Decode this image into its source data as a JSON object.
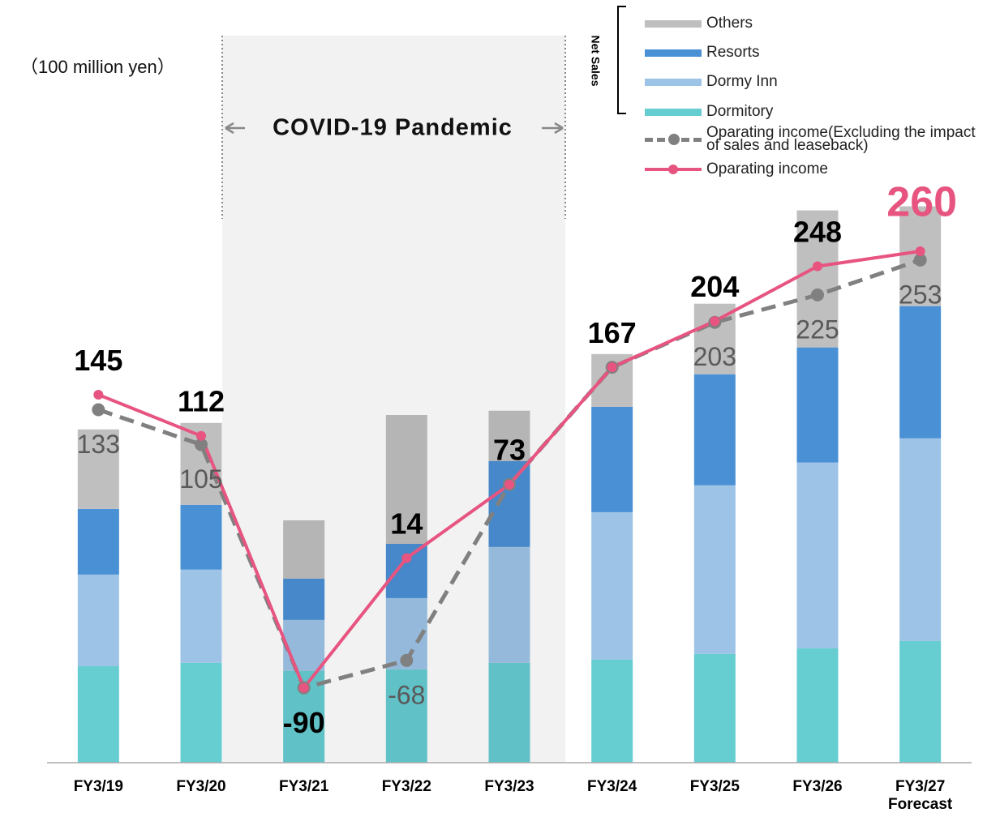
{
  "chart_data": {
    "type": "bar",
    "stacked": true,
    "unit_label": "（100 million yen）",
    "annotation": "COVID-19 Pandemic",
    "legend_group": "Net Sales",
    "categories": [
      "FY3/19",
      "FY3/20",
      "FY3/21",
      "FY3/22",
      "FY3/23",
      "FY3/24",
      "FY3/25",
      "FY3/26",
      "FY3/27 Forecast"
    ],
    "series": [
      {
        "name": "Dormitory",
        "color": "#66cdd1",
        "values": [
          521,
          539,
          495,
          504,
          539,
          556,
          587,
          618,
          657
        ]
      },
      {
        "name": "Dormy Inn",
        "color": "#9dc3e6",
        "values": [
          495,
          504,
          276,
          385,
          626,
          797,
          911,
          1003,
          1095
        ]
      },
      {
        "name": "Resorts",
        "color": "#4a90d4",
        "values": [
          355,
          350,
          223,
          293,
          464,
          569,
          600,
          622,
          714
        ]
      },
      {
        "name": "Others",
        "color": "#bfbfbf",
        "values": [
          429,
          442,
          315,
          696,
          272,
          285,
          381,
          740,
          539
        ]
      },
      {
        "name": "Oparating income(Excluding the impact of sales and leaseback)",
        "type": "line",
        "axis": "y2",
        "dashed": true,
        "color": "#808080",
        "values": [
          133,
          105,
          -90,
          -68,
          73,
          167,
          203,
          225,
          253
        ]
      },
      {
        "name": "Oparating income",
        "type": "line",
        "axis": "y2",
        "dashed": false,
        "color": "#e75480",
        "values": [
          145,
          112,
          -90,
          14,
          73,
          167,
          204,
          248,
          260
        ]
      }
    ],
    "ylim": [
      0,
      3200
    ],
    "y2lim": [
      -150,
      325
    ]
  }
}
